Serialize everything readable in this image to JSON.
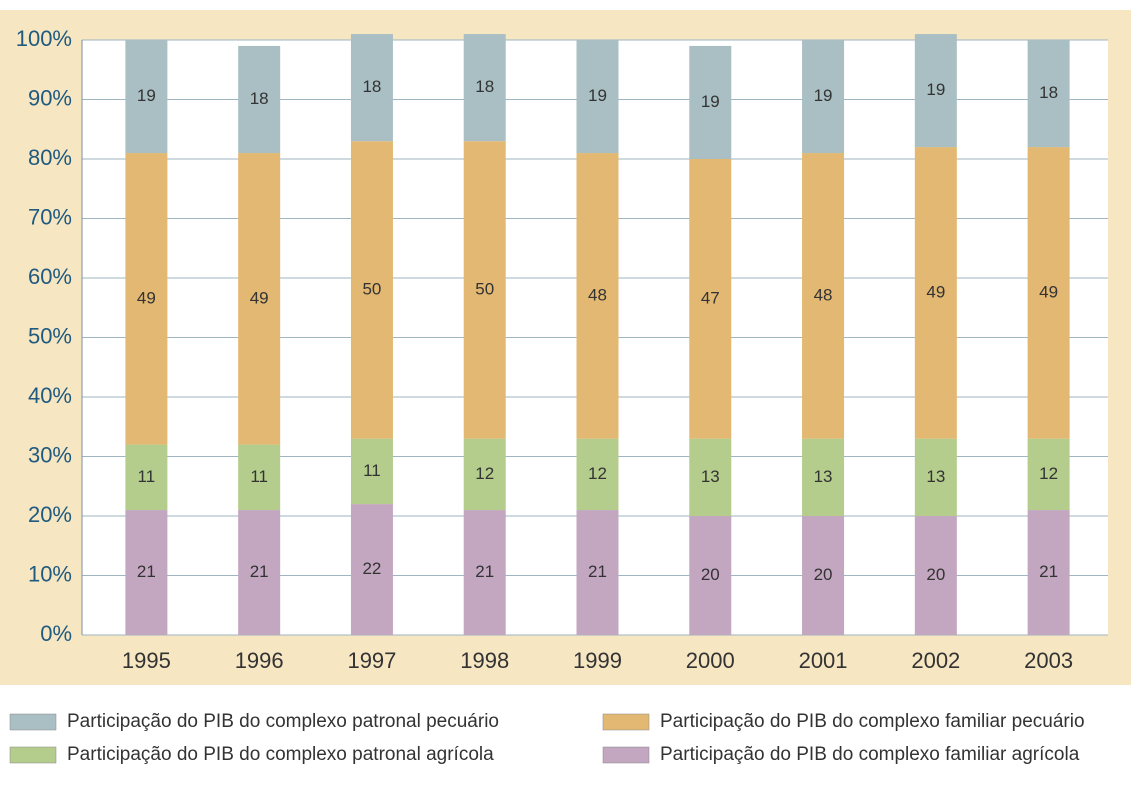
{
  "chart_data": {
    "type": "stacked_bar",
    "categories": [
      "1995",
      "1996",
      "1997",
      "1998",
      "1999",
      "2000",
      "2001",
      "2002",
      "2003"
    ],
    "series": [
      {
        "name": "Participação do PIB do complexo familiar agrícola",
        "color": "#c3a6c0",
        "values": [
          21,
          21,
          22,
          21,
          21,
          20,
          20,
          20,
          21
        ]
      },
      {
        "name": "Participação do PIB do complexo patronal agrícola",
        "color": "#b4cc8c",
        "values": [
          11,
          11,
          11,
          12,
          12,
          13,
          13,
          13,
          12
        ]
      },
      {
        "name": "Participação do PIB do complexo familiar pecuário",
        "color": "#e3b872",
        "values": [
          49,
          49,
          50,
          50,
          48,
          47,
          48,
          49,
          49
        ]
      },
      {
        "name": "Participação do PIB do complexo patronal pecuário",
        "color": "#a9bfc4",
        "values": [
          19,
          18,
          18,
          18,
          19,
          19,
          19,
          19,
          18
        ]
      }
    ],
    "ylim": [
      0,
      100
    ],
    "yticks": [
      {
        "value": 0,
        "label": "0%"
      },
      {
        "value": 10,
        "label": "10%"
      },
      {
        "value": 20,
        "label": "20%"
      },
      {
        "value": 30,
        "label": "30%"
      },
      {
        "value": 40,
        "label": "40%"
      },
      {
        "value": 50,
        "label": "50%"
      },
      {
        "value": 60,
        "label": "60%"
      },
      {
        "value": 70,
        "label": "70%"
      },
      {
        "value": 80,
        "label": "80%"
      },
      {
        "value": 90,
        "label": "90%"
      },
      {
        "value": 100,
        "label": "100%"
      }
    ],
    "grid": true
  }
}
